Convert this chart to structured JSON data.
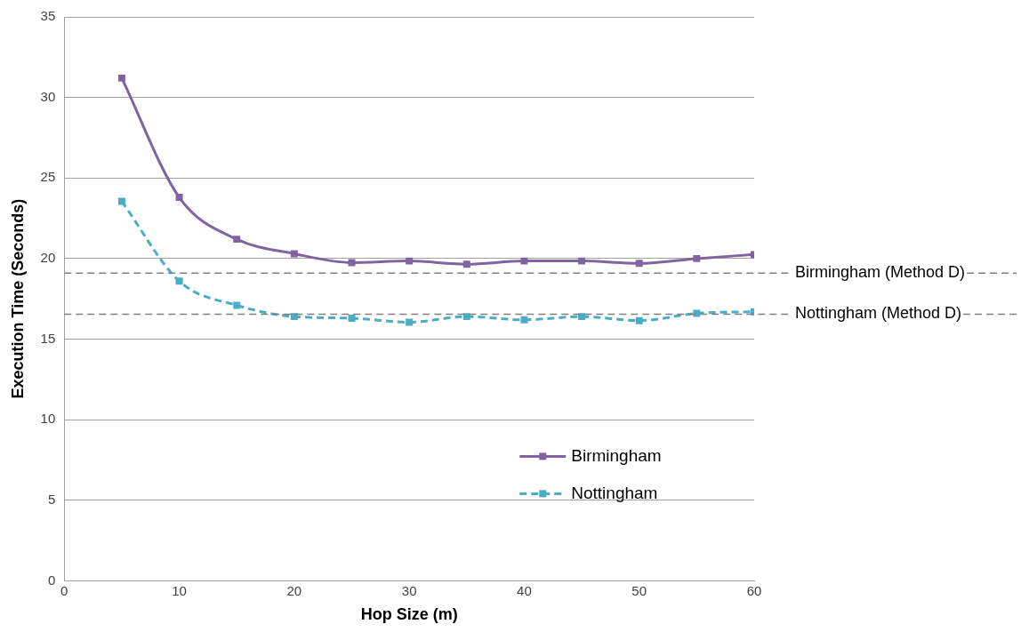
{
  "chart_data": {
    "type": "line",
    "xlabel": "Hop Size (m)",
    "ylabel": "Execution Time (Seconds)",
    "x": [
      5,
      10,
      15,
      20,
      25,
      30,
      35,
      40,
      45,
      50,
      55,
      60
    ],
    "series": [
      {
        "name": "Birmingham",
        "color": "#8064a2",
        "line_style": "solid",
        "values": [
          31.2,
          23.8,
          21.2,
          20.3,
          19.75,
          19.85,
          19.65,
          19.85,
          19.85,
          19.7,
          20.0,
          20.25
        ]
      },
      {
        "name": "Nottingham",
        "color": "#4bacc6",
        "line_style": "dashed",
        "values": [
          23.55,
          18.6,
          17.1,
          16.4,
          16.3,
          16.05,
          16.4,
          16.2,
          16.4,
          16.15,
          16.6,
          16.7
        ]
      }
    ],
    "xlim": [
      0,
      60
    ],
    "xticks": [
      0,
      10,
      20,
      30,
      40,
      50,
      60
    ],
    "ylim": [
      0,
      35
    ],
    "yticks": [
      0,
      5,
      10,
      15,
      20,
      25,
      30,
      35
    ],
    "ref_lines": [
      {
        "axis": "y",
        "value": 19.1,
        "label": "Birmingham (Method D)",
        "color": "#808080",
        "line_style": "dashed"
      },
      {
        "axis": "y",
        "value": 16.55,
        "label": "Nottingham (Method D)",
        "color": "#808080",
        "line_style": "dashed"
      }
    ],
    "grid": "y",
    "legend": "bottom right",
    "marker": "square"
  }
}
